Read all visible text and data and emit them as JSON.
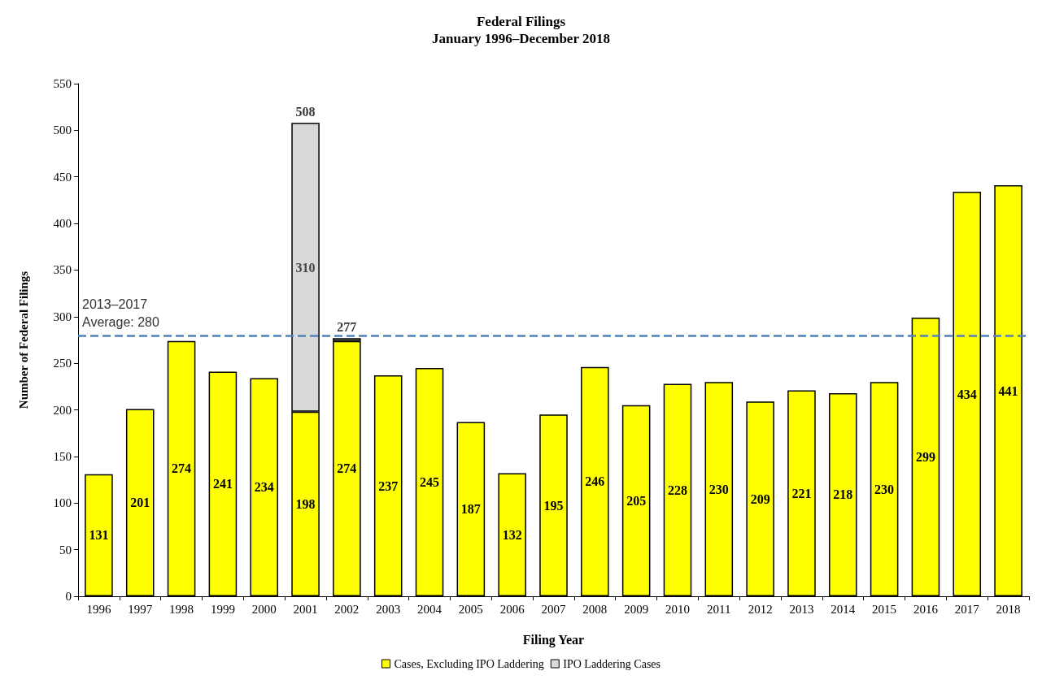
{
  "chart_data": {
    "type": "bar",
    "title": "Federal Filings",
    "subtitle": "January 1996–December 2018",
    "xlabel": "Filing Year",
    "ylabel": "Number of Federal Filings",
    "categories": [
      "1996",
      "1997",
      "1998",
      "1999",
      "2000",
      "2001",
      "2002",
      "2003",
      "2004",
      "2005",
      "2006",
      "2007",
      "2008",
      "2009",
      "2010",
      "2011",
      "2012",
      "2013",
      "2014",
      "2015",
      "2016",
      "2017",
      "2018"
    ],
    "stacked": true,
    "series": [
      {
        "name": "Cases, Excluding IPO Laddering",
        "color": "#ffff00",
        "values": [
          131,
          201,
          274,
          241,
          234,
          198,
          274,
          237,
          245,
          187,
          132,
          195,
          246,
          205,
          228,
          230,
          209,
          221,
          218,
          230,
          299,
          434,
          441
        ],
        "value_labels": [
          "131",
          "201",
          "274",
          "241",
          "234",
          "198",
          "274",
          "237",
          "245",
          "187",
          "132",
          "195",
          "246",
          "205",
          "228",
          "230",
          "209",
          "221",
          "218",
          "230",
          "299",
          "434",
          "441"
        ]
      },
      {
        "name": "IPO Laddering Cases",
        "color": "#d9d9d9",
        "values": [
          null,
          null,
          null,
          null,
          null,
          310,
          3,
          null,
          null,
          null,
          null,
          null,
          null,
          null,
          null,
          null,
          null,
          null,
          null,
          null,
          null,
          null,
          null
        ],
        "value_labels": [
          null,
          null,
          null,
          null,
          null,
          "310",
          null,
          null,
          null,
          null,
          null,
          null,
          null,
          null,
          null,
          null,
          null,
          null,
          null,
          null,
          null,
          null,
          null
        ]
      }
    ],
    "totals": [
      null,
      null,
      null,
      null,
      null,
      "508",
      "277",
      null,
      null,
      null,
      null,
      null,
      null,
      null,
      null,
      null,
      null,
      null,
      null,
      null,
      null,
      null,
      null
    ],
    "ref_lines": [
      {
        "axis": "y",
        "value": 280,
        "label": "2013–2017\nAverage: 280",
        "color": "#4f81bd",
        "line_style": "dashed"
      }
    ],
    "ylim": [
      0,
      550
    ],
    "yticks": [
      0,
      50,
      100,
      150,
      200,
      250,
      300,
      350,
      400,
      450,
      500,
      550
    ],
    "grid": false,
    "legend": "bottom"
  }
}
